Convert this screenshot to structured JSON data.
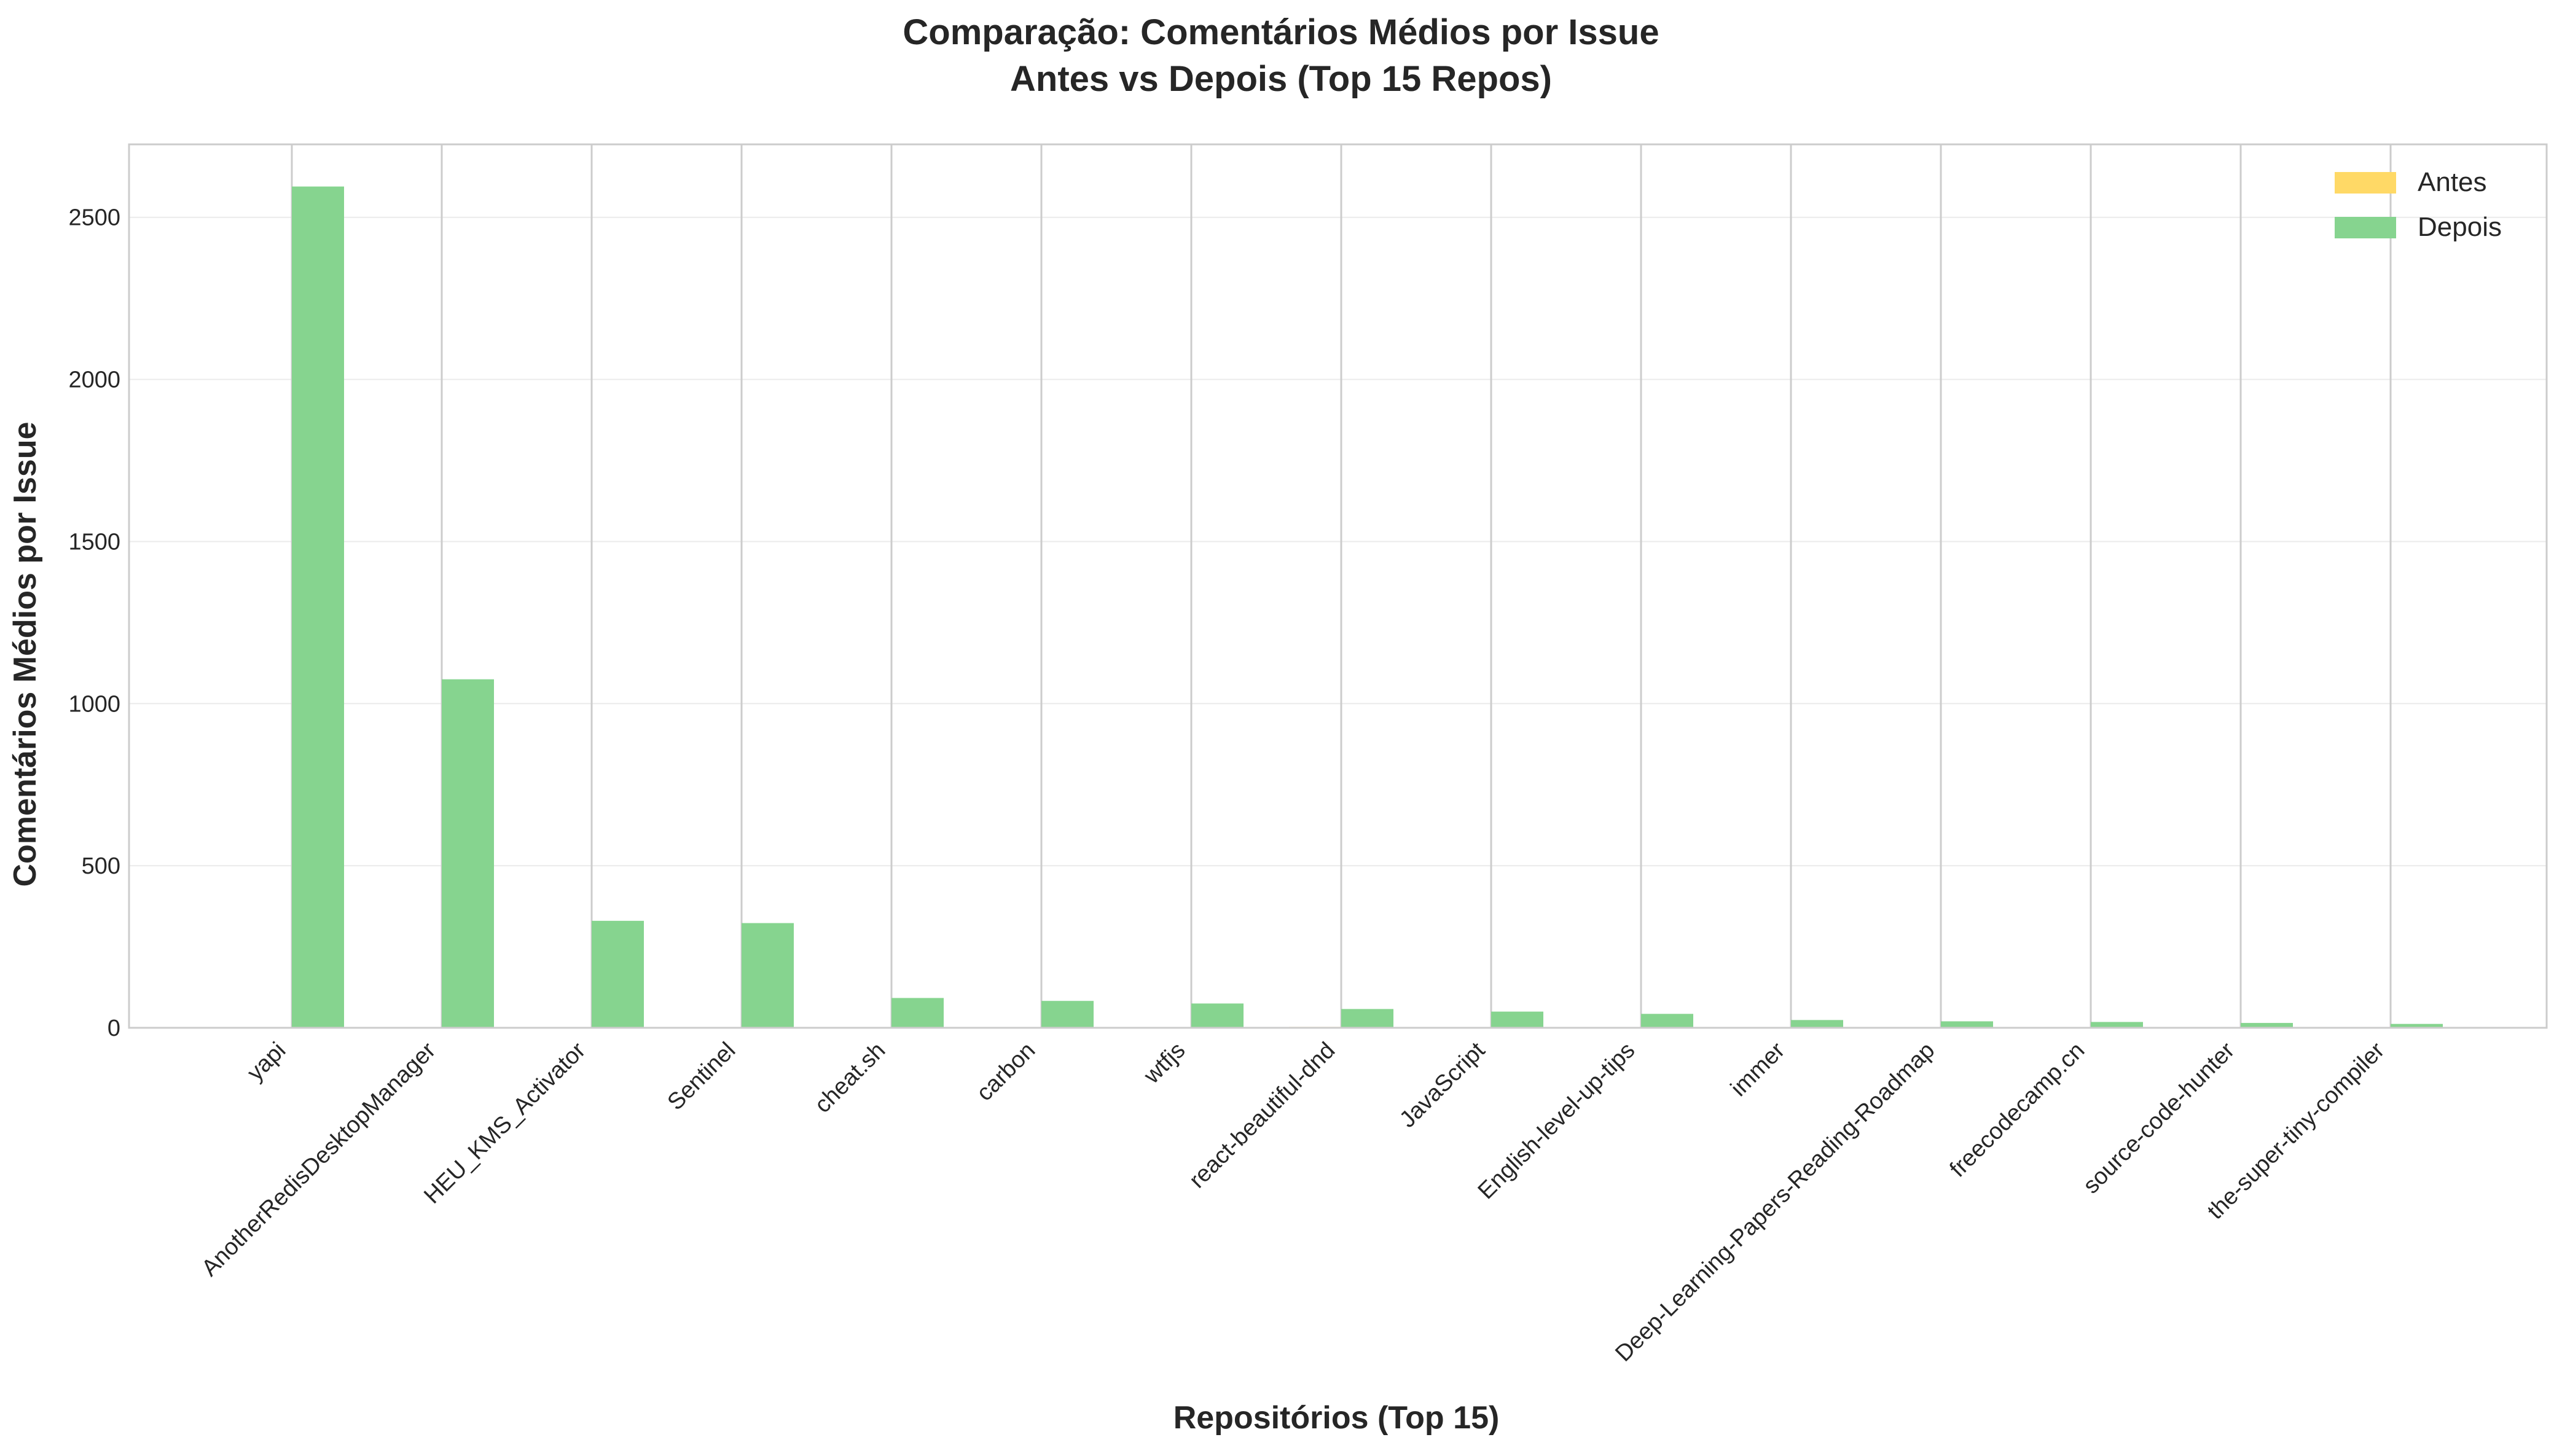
{
  "chart_data": {
    "type": "bar",
    "title_line1": "Comparação: Comentários Médios por Issue",
    "title_line2": "Antes vs Depois (Top 15 Repos)",
    "xlabel": "Repositórios (Top 15)",
    "ylabel": "Comentários Médios por Issue",
    "ylim": [
      0,
      2725
    ],
    "yticks": [
      0,
      500,
      1000,
      1500,
      2000,
      2500
    ],
    "grid": true,
    "legend_position": "top-right",
    "categories": [
      "yapi",
      "AnotherRedisDesktopManager",
      "HEU_KMS_Activator",
      "Sentinel",
      "cheat.sh",
      "carbon",
      "wtfjs",
      "react-beautiful-dnd",
      "JavaScript",
      "English-level-up-tips",
      "immer",
      "Deep-Learning-Papers-Reading-Roadmap",
      "freecodecamp.cn",
      "source-code-hunter",
      "the-super-tiny-compiler"
    ],
    "series": [
      {
        "name": "Antes",
        "color": "#ffd966",
        "values": [
          0.5,
          1,
          1,
          0.5,
          2,
          1,
          1,
          3,
          1,
          2,
          0.5,
          0.5,
          0.5,
          0.5,
          0.5
        ]
      },
      {
        "name": "Depois",
        "color": "#86d48f",
        "values": [
          2595,
          1075,
          330,
          323,
          92,
          83,
          75,
          58,
          50,
          43,
          24,
          20,
          18,
          15,
          12
        ]
      }
    ]
  }
}
